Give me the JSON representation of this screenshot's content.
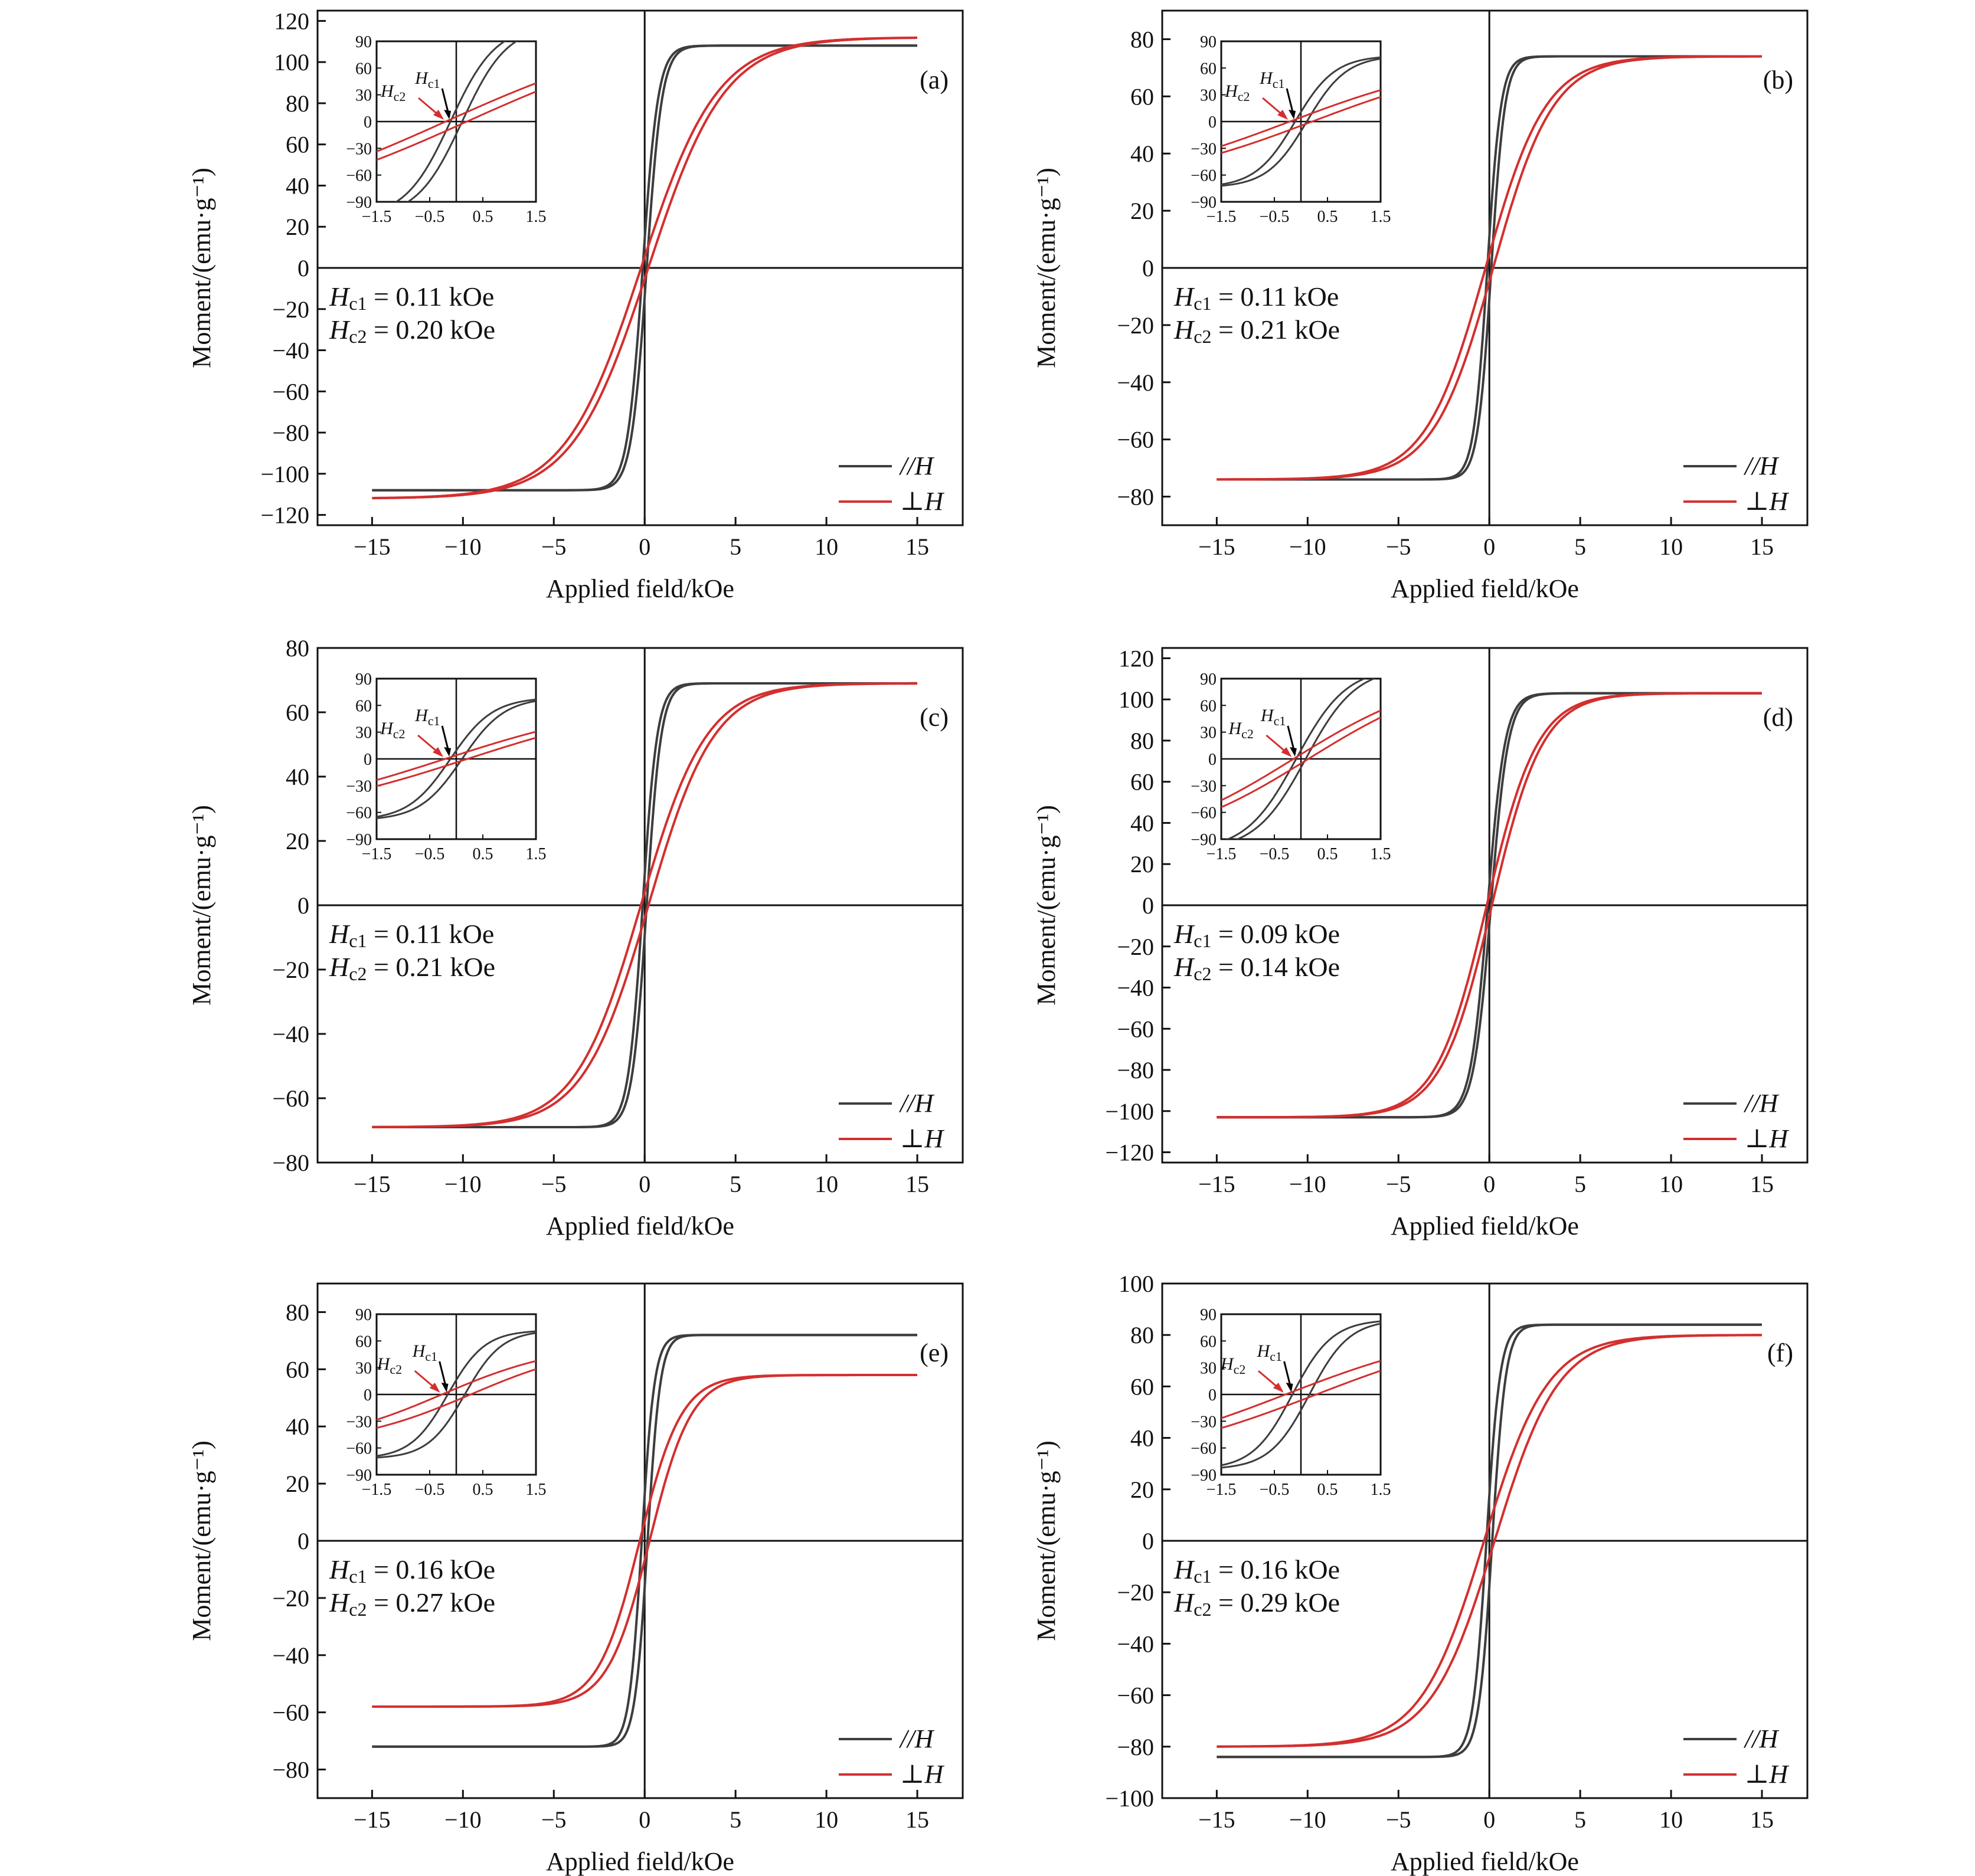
{
  "colors": {
    "parallel": "#3d3d3d",
    "perpendicular": "#d32f2f",
    "axis": "#111111"
  },
  "x_ticks": [
    "-15",
    "-10",
    "-5",
    "0",
    "5",
    "10",
    "15"
  ],
  "inset_x_ticks": [
    "-1.5",
    "-0.5",
    "0.5",
    "1.5"
  ],
  "inset_y_ticks": [
    "-90",
    "-60",
    "-30",
    "0",
    "30",
    "60",
    "90"
  ],
  "legend": {
    "parallel": "//H",
    "perpendicular": "⊥H"
  },
  "hc1_label": "Hc1",
  "hc2_label": "Hc2",
  "chart_data": [
    {
      "panel": "(a)",
      "type": "line",
      "xlabel": "Applied field/kOe",
      "ylabel": "Moment/(emu·g⁻¹)",
      "xlim": [
        -18,
        17.5
      ],
      "ylim": [
        -125,
        125
      ],
      "ytick_values": [
        -120,
        -100,
        -80,
        -60,
        -40,
        -20,
        0,
        20,
        40,
        60,
        80,
        100,
        120
      ],
      "series": [
        {
          "name": "//H",
          "ms": 108,
          "hc": 0.11,
          "a": 0.85
        },
        {
          "name": "⊥H",
          "ms": 112,
          "hc": 0.2,
          "a": 4.2
        }
      ],
      "annotation": {
        "hc1": "= 0.11 kOe",
        "hc2": "= 0.20 kOe"
      }
    },
    {
      "panel": "(b)",
      "type": "line",
      "xlabel": "Applied field/kOe",
      "ylabel": "Moment/(emu·g⁻¹)",
      "xlim": [
        -18,
        17.5
      ],
      "ylim": [
        -90,
        90
      ],
      "ytick_values": [
        -80,
        -60,
        -40,
        -20,
        0,
        20,
        40,
        60,
        80
      ],
      "series": [
        {
          "name": "//H",
          "ms": 74,
          "hc": 0.11,
          "a": 0.75
        },
        {
          "name": "⊥H",
          "ms": 74,
          "hc": 0.21,
          "a": 3.3
        }
      ],
      "annotation": {
        "hc1": "= 0.11 kOe",
        "hc2": "= 0.21 kOe"
      }
    },
    {
      "panel": "(c)",
      "type": "line",
      "xlabel": "Applied field/kOe",
      "ylabel": "Moment/(emu·g⁻¹)",
      "xlim": [
        -18,
        17.5
      ],
      "ylim": [
        -80,
        80
      ],
      "ytick_values": [
        -80,
        -60,
        -40,
        -20,
        0,
        20,
        40,
        60,
        80
      ],
      "series": [
        {
          "name": "//H",
          "ms": 69,
          "hc": 0.11,
          "a": 0.8
        },
        {
          "name": "⊥H",
          "ms": 69,
          "hc": 0.21,
          "a": 3.6
        }
      ],
      "annotation": {
        "hc1": "= 0.11 kOe",
        "hc2": "= 0.21 kOe"
      }
    },
    {
      "panel": "(d)",
      "type": "line",
      "xlabel": "Applied field/kOe",
      "ylabel": "Moment/(emu·g⁻¹)",
      "xlim": [
        -18,
        17.5
      ],
      "ylim": [
        -125,
        125
      ],
      "ytick_values": [
        -120,
        -100,
        -80,
        -60,
        -40,
        -20,
        0,
        20,
        40,
        60,
        80,
        100,
        120
      ],
      "series": [
        {
          "name": "//H",
          "ms": 103,
          "hc": 0.09,
          "a": 0.95
        },
        {
          "name": "⊥H",
          "ms": 103,
          "hc": 0.14,
          "a": 2.8
        }
      ],
      "annotation": {
        "hc1": "= 0.09 kOe",
        "hc2": "= 0.14 kOe"
      }
    },
    {
      "panel": "(e)",
      "type": "line",
      "xlabel": "Applied field/kOe",
      "ylabel": "Moment/(emu·g⁻¹)",
      "xlim": [
        -18,
        17.5
      ],
      "ylim": [
        -90,
        90
      ],
      "ytick_values": [
        -80,
        -60,
        -40,
        -20,
        0,
        20,
        40,
        60,
        80
      ],
      "series": [
        {
          "name": "//H",
          "ms": 72,
          "hc": 0.16,
          "a": 0.7
        },
        {
          "name": "⊥H",
          "ms": 58,
          "hc": 0.27,
          "a": 2.3
        }
      ],
      "annotation": {
        "hc1": "= 0.16 kOe",
        "hc2": "= 0.27 kOe"
      }
    },
    {
      "panel": "(f)",
      "type": "line",
      "xlabel": "Applied field/kOe",
      "ylabel": "Moment/(emu·g⁻¹)",
      "xlim": [
        -18,
        17.5
      ],
      "ylim": [
        -100,
        100
      ],
      "ytick_values": [
        -100,
        -80,
        -60,
        -40,
        -20,
        0,
        20,
        40,
        60,
        80,
        100
      ],
      "series": [
        {
          "name": "//H",
          "ms": 84,
          "hc": 0.16,
          "a": 0.75
        },
        {
          "name": "⊥H",
          "ms": 80,
          "hc": 0.29,
          "a": 3.5
        }
      ],
      "annotation": {
        "hc1": "= 0.16 kOe",
        "hc2": "= 0.29 kOe"
      }
    }
  ]
}
